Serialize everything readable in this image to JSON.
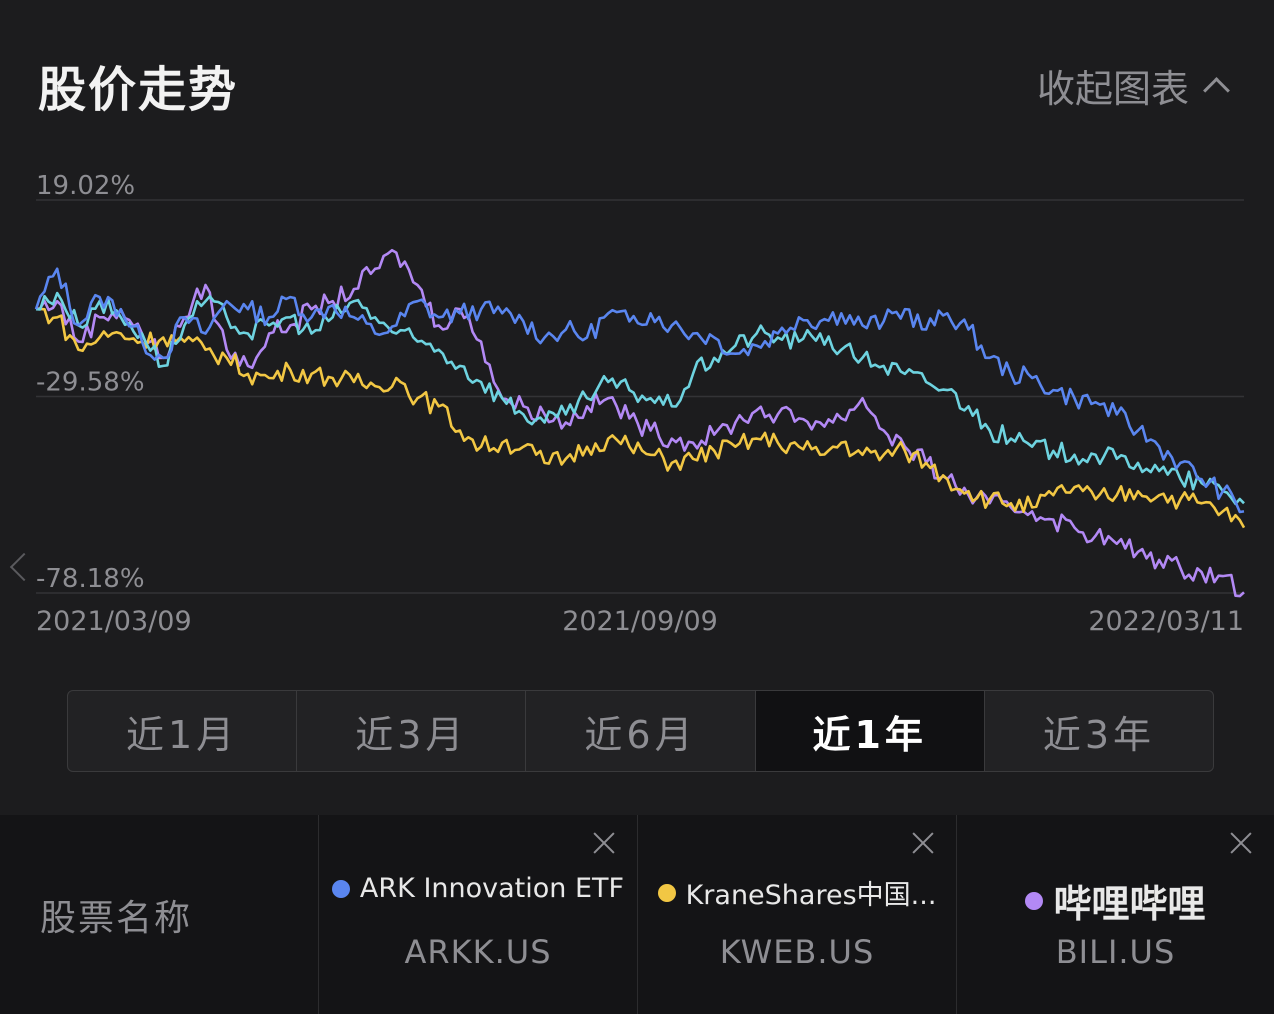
{
  "header": {
    "title": "股价走势",
    "collapse_label": "收起图表"
  },
  "chart_data": {
    "type": "line",
    "x_range": [
      "2021/03/09",
      "2022/03/11"
    ],
    "x_ticks": [
      "2021/03/09",
      "2021/09/09",
      "2022/03/11"
    ],
    "y_ticks": [
      "19.02%",
      "-29.58%",
      "-78.18%"
    ],
    "ylim": [
      -78.18,
      19.02
    ],
    "y_unit": "%",
    "grid": true,
    "series": [
      {
        "name": "ARK Innovation ETF",
        "color": "#5a86f0",
        "points": [
          [
            0,
            -8
          ],
          [
            10,
            2
          ],
          [
            20,
            -12
          ],
          [
            30,
            -5
          ],
          [
            40,
            -8
          ],
          [
            50,
            -16
          ],
          [
            60,
            -20
          ],
          [
            70,
            -10
          ],
          [
            80,
            -14
          ],
          [
            90,
            -6
          ],
          [
            100,
            -8
          ],
          [
            110,
            -10
          ],
          [
            120,
            -5
          ],
          [
            130,
            -10
          ],
          [
            140,
            -7
          ],
          [
            150,
            -10
          ],
          [
            160,
            -14
          ],
          [
            170,
            -12
          ],
          [
            180,
            -6
          ],
          [
            190,
            -10
          ],
          [
            200,
            -9
          ],
          [
            210,
            -8
          ],
          [
            220,
            -9
          ],
          [
            230,
            -11
          ],
          [
            240,
            -15
          ],
          [
            250,
            -13
          ],
          [
            260,
            -15
          ],
          [
            270,
            -9
          ],
          [
            280,
            -11
          ],
          [
            290,
            -9
          ],
          [
            300,
            -12
          ],
          [
            310,
            -14
          ],
          [
            320,
            -15
          ],
          [
            330,
            -19
          ],
          [
            340,
            -17
          ],
          [
            350,
            -14
          ],
          [
            360,
            -10
          ],
          [
            370,
            -11
          ],
          [
            380,
            -9
          ],
          [
            390,
            -12
          ],
          [
            400,
            -11
          ],
          [
            410,
            -8
          ],
          [
            420,
            -13
          ],
          [
            430,
            -9
          ],
          [
            440,
            -13
          ],
          [
            450,
            -20
          ],
          [
            460,
            -24
          ],
          [
            470,
            -25
          ],
          [
            480,
            -28
          ],
          [
            490,
            -30
          ],
          [
            500,
            -31
          ],
          [
            510,
            -34
          ],
          [
            520,
            -38
          ],
          [
            530,
            -42
          ],
          [
            540,
            -46
          ],
          [
            550,
            -50
          ],
          [
            560,
            -53
          ],
          [
            570,
            -58
          ]
        ]
      },
      {
        "name": "KraneShares中国...",
        "color": "#f2c744",
        "points": [
          [
            0,
            -8
          ],
          [
            10,
            -10
          ],
          [
            20,
            -18
          ],
          [
            30,
            -15
          ],
          [
            40,
            -14
          ],
          [
            50,
            -16
          ],
          [
            60,
            -15
          ],
          [
            70,
            -16
          ],
          [
            80,
            -18
          ],
          [
            90,
            -20
          ],
          [
            100,
            -24
          ],
          [
            110,
            -25
          ],
          [
            120,
            -23
          ],
          [
            130,
            -24
          ],
          [
            140,
            -25
          ],
          [
            150,
            -26
          ],
          [
            160,
            -27
          ],
          [
            170,
            -25
          ],
          [
            180,
            -30
          ],
          [
            190,
            -32
          ],
          [
            200,
            -38
          ],
          [
            210,
            -42
          ],
          [
            220,
            -41
          ],
          [
            230,
            -42
          ],
          [
            240,
            -46
          ],
          [
            250,
            -45
          ],
          [
            260,
            -42
          ],
          [
            270,
            -40
          ],
          [
            280,
            -42
          ],
          [
            290,
            -44
          ],
          [
            300,
            -46
          ],
          [
            310,
            -45
          ],
          [
            320,
            -43
          ],
          [
            330,
            -42
          ],
          [
            340,
            -40
          ],
          [
            350,
            -41
          ],
          [
            360,
            -42
          ],
          [
            370,
            -44
          ],
          [
            380,
            -41
          ],
          [
            390,
            -44
          ],
          [
            400,
            -44
          ],
          [
            410,
            -43
          ],
          [
            420,
            -46
          ],
          [
            430,
            -50
          ],
          [
            440,
            -53
          ],
          [
            450,
            -55
          ],
          [
            460,
            -56
          ],
          [
            470,
            -57
          ],
          [
            480,
            -54
          ],
          [
            490,
            -52
          ],
          [
            500,
            -55
          ],
          [
            510,
            -54
          ],
          [
            520,
            -53
          ],
          [
            530,
            -54
          ],
          [
            540,
            -55
          ],
          [
            550,
            -56
          ],
          [
            560,
            -58
          ],
          [
            570,
            -62
          ]
        ]
      },
      {
        "name": "哔哩哔哩",
        "color": "#b389f5",
        "points": [
          [
            0,
            -8
          ],
          [
            10,
            -6
          ],
          [
            20,
            -16
          ],
          [
            30,
            -10
          ],
          [
            40,
            -8
          ],
          [
            50,
            -14
          ],
          [
            60,
            -20
          ],
          [
            70,
            -10
          ],
          [
            80,
            -2
          ],
          [
            90,
            -18
          ],
          [
            100,
            -22
          ],
          [
            110,
            -14
          ],
          [
            120,
            -12
          ],
          [
            130,
            -8
          ],
          [
            140,
            -6
          ],
          [
            150,
            -3
          ],
          [
            160,
            2
          ],
          [
            170,
            6
          ],
          [
            180,
            -2
          ],
          [
            190,
            -12
          ],
          [
            200,
            -8
          ],
          [
            210,
            -16
          ],
          [
            220,
            -30
          ],
          [
            230,
            -32
          ],
          [
            240,
            -34
          ],
          [
            250,
            -36
          ],
          [
            260,
            -32
          ],
          [
            270,
            -30
          ],
          [
            280,
            -35
          ],
          [
            290,
            -38
          ],
          [
            300,
            -40
          ],
          [
            310,
            -41
          ],
          [
            320,
            -39
          ],
          [
            330,
            -36
          ],
          [
            340,
            -33
          ],
          [
            350,
            -34
          ],
          [
            360,
            -35
          ],
          [
            370,
            -36
          ],
          [
            380,
            -35
          ],
          [
            390,
            -30
          ],
          [
            400,
            -38
          ],
          [
            410,
            -42
          ],
          [
            420,
            -46
          ],
          [
            430,
            -50
          ],
          [
            440,
            -54
          ],
          [
            450,
            -56
          ],
          [
            460,
            -57
          ],
          [
            470,
            -58
          ],
          [
            480,
            -60
          ],
          [
            490,
            -62
          ],
          [
            500,
            -64
          ],
          [
            510,
            -66
          ],
          [
            520,
            -68
          ],
          [
            530,
            -70
          ],
          [
            540,
            -72
          ],
          [
            550,
            -73
          ],
          [
            560,
            -74
          ],
          [
            570,
            -78
          ]
        ]
      },
      {
        "name": "",
        "color": "#6ed3e0",
        "points": [
          [
            0,
            -8
          ],
          [
            10,
            -4
          ],
          [
            20,
            -12
          ],
          [
            30,
            -6
          ],
          [
            40,
            -10
          ],
          [
            50,
            -14
          ],
          [
            60,
            -22
          ],
          [
            70,
            -12
          ],
          [
            80,
            -6
          ],
          [
            90,
            -10
          ],
          [
            100,
            -14
          ],
          [
            110,
            -12
          ],
          [
            120,
            -10
          ],
          [
            130,
            -14
          ],
          [
            140,
            -10
          ],
          [
            150,
            -6
          ],
          [
            160,
            -10
          ],
          [
            170,
            -14
          ],
          [
            180,
            -16
          ],
          [
            190,
            -18
          ],
          [
            200,
            -22
          ],
          [
            210,
            -26
          ],
          [
            220,
            -30
          ],
          [
            230,
            -34
          ],
          [
            240,
            -36
          ],
          [
            250,
            -34
          ],
          [
            260,
            -30
          ],
          [
            270,
            -26
          ],
          [
            280,
            -28
          ],
          [
            290,
            -30
          ],
          [
            300,
            -32
          ],
          [
            310,
            -24
          ],
          [
            320,
            -20
          ],
          [
            330,
            -17
          ],
          [
            340,
            -14
          ],
          [
            350,
            -15
          ],
          [
            360,
            -16
          ],
          [
            370,
            -14
          ],
          [
            380,
            -18
          ],
          [
            390,
            -20
          ],
          [
            400,
            -22
          ],
          [
            410,
            -24
          ],
          [
            420,
            -26
          ],
          [
            430,
            -28
          ],
          [
            440,
            -32
          ],
          [
            450,
            -38
          ],
          [
            460,
            -40
          ],
          [
            470,
            -42
          ],
          [
            480,
            -43
          ],
          [
            490,
            -44
          ],
          [
            500,
            -44
          ],
          [
            510,
            -45
          ],
          [
            520,
            -46
          ],
          [
            530,
            -48
          ],
          [
            540,
            -50
          ],
          [
            550,
            -51
          ],
          [
            560,
            -53
          ],
          [
            570,
            -56
          ]
        ]
      }
    ]
  },
  "range_tabs": [
    {
      "label": "近1月",
      "active": false
    },
    {
      "label": "近3月",
      "active": false
    },
    {
      "label": "近6月",
      "active": false
    },
    {
      "label": "近1年",
      "active": true
    },
    {
      "label": "近3年",
      "active": false
    }
  ],
  "stocks": {
    "label": "股票名称",
    "items": [
      {
        "name": "ARK Innovation ETF",
        "ticker": "ARKK.US",
        "color": "#5a86f0"
      },
      {
        "name": "KraneShares中国...",
        "ticker": "KWEB.US",
        "color": "#f2c744"
      },
      {
        "name": "哔哩哔哩",
        "ticker": "BILI.US",
        "color": "#b389f5"
      }
    ]
  }
}
